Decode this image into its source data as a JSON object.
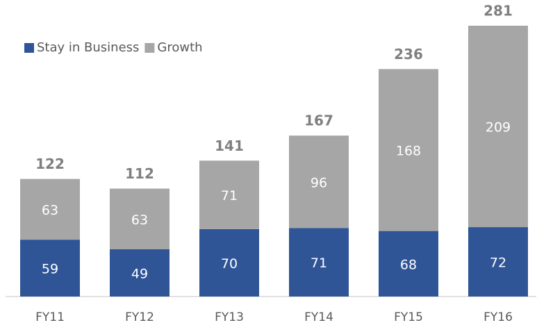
{
  "chart_data": {
    "type": "stacked_bar",
    "categories": [
      "FY11",
      "FY12",
      "FY13",
      "FY14",
      "FY15",
      "FY16"
    ],
    "series": [
      {
        "name": "Stay in Business",
        "color": "#2f5597",
        "values": [
          59,
          49,
          70,
          71,
          68,
          72
        ]
      },
      {
        "name": "Growth",
        "color": "#a6a6a6",
        "values": [
          63,
          63,
          71,
          96,
          168,
          209
        ]
      }
    ],
    "totals": [
      122,
      112,
      141,
      167,
      236,
      281
    ],
    "legend": "top-left"
  }
}
